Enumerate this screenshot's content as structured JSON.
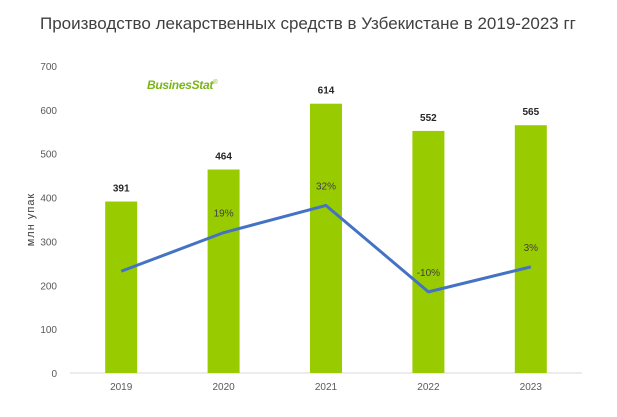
{
  "chart_data": {
    "type": "bar",
    "title": "Производство лекарственных средств в Узбекистане в 2019-2023 гг",
    "ylabel": "млн упак",
    "xlabel": "",
    "categories": [
      "2019",
      "2020",
      "2021",
      "2022",
      "2023"
    ],
    "ylim": [
      0,
      700
    ],
    "yticks": [
      "0",
      "100",
      "200",
      "300",
      "400",
      "500",
      "600",
      "700"
    ],
    "series": [
      {
        "type": "bar",
        "values": [
          391,
          464,
          614,
          552,
          565
        ],
        "labels": [
          "391",
          "464",
          "614",
          "552",
          "565"
        ],
        "color": "#99cc00"
      },
      {
        "type": "line",
        "values": [
          null,
          19,
          32,
          -10,
          3
        ],
        "labels": [
          "",
          "19%",
          "32%",
          "-10%",
          "3%"
        ],
        "color": "#4472c4"
      }
    ],
    "line_points_on_primary_axis": [
      232,
      320,
      382,
      185,
      242
    ],
    "grid": false,
    "legend": "none"
  },
  "logo": {
    "text": "BusinesStat",
    "mark": "®"
  }
}
